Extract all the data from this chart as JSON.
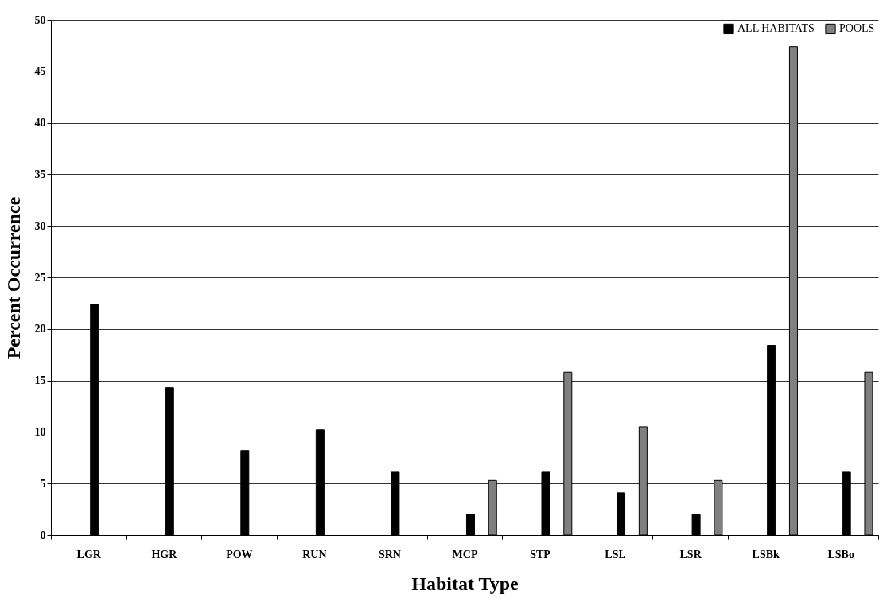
{
  "chart_data": {
    "type": "bar",
    "xlabel": "Habitat Type",
    "ylabel": "Percent Occurrence",
    "categories": [
      "LGR",
      "HGR",
      "POW",
      "RUN",
      "SRN",
      "MCP",
      "STP",
      "LSL",
      "LSR",
      "LSBk",
      "LSBo"
    ],
    "series": [
      {
        "name": "ALL HABITATS",
        "color": "#000000",
        "values": [
          22.4,
          14.3,
          8.2,
          10.2,
          6.1,
          2.0,
          6.1,
          4.1,
          2.0,
          18.4,
          6.1
        ]
      },
      {
        "name": "POOLS",
        "color": "#808080",
        "values": [
          null,
          null,
          null,
          null,
          null,
          5.3,
          15.8,
          10.5,
          5.3,
          47.4,
          15.8
        ]
      }
    ],
    "ylim": [
      0,
      50
    ],
    "yticks": [
      0,
      5,
      10,
      15,
      20,
      25,
      30,
      35,
      40,
      45,
      50
    ],
    "grid": "y",
    "legend": "top right"
  }
}
